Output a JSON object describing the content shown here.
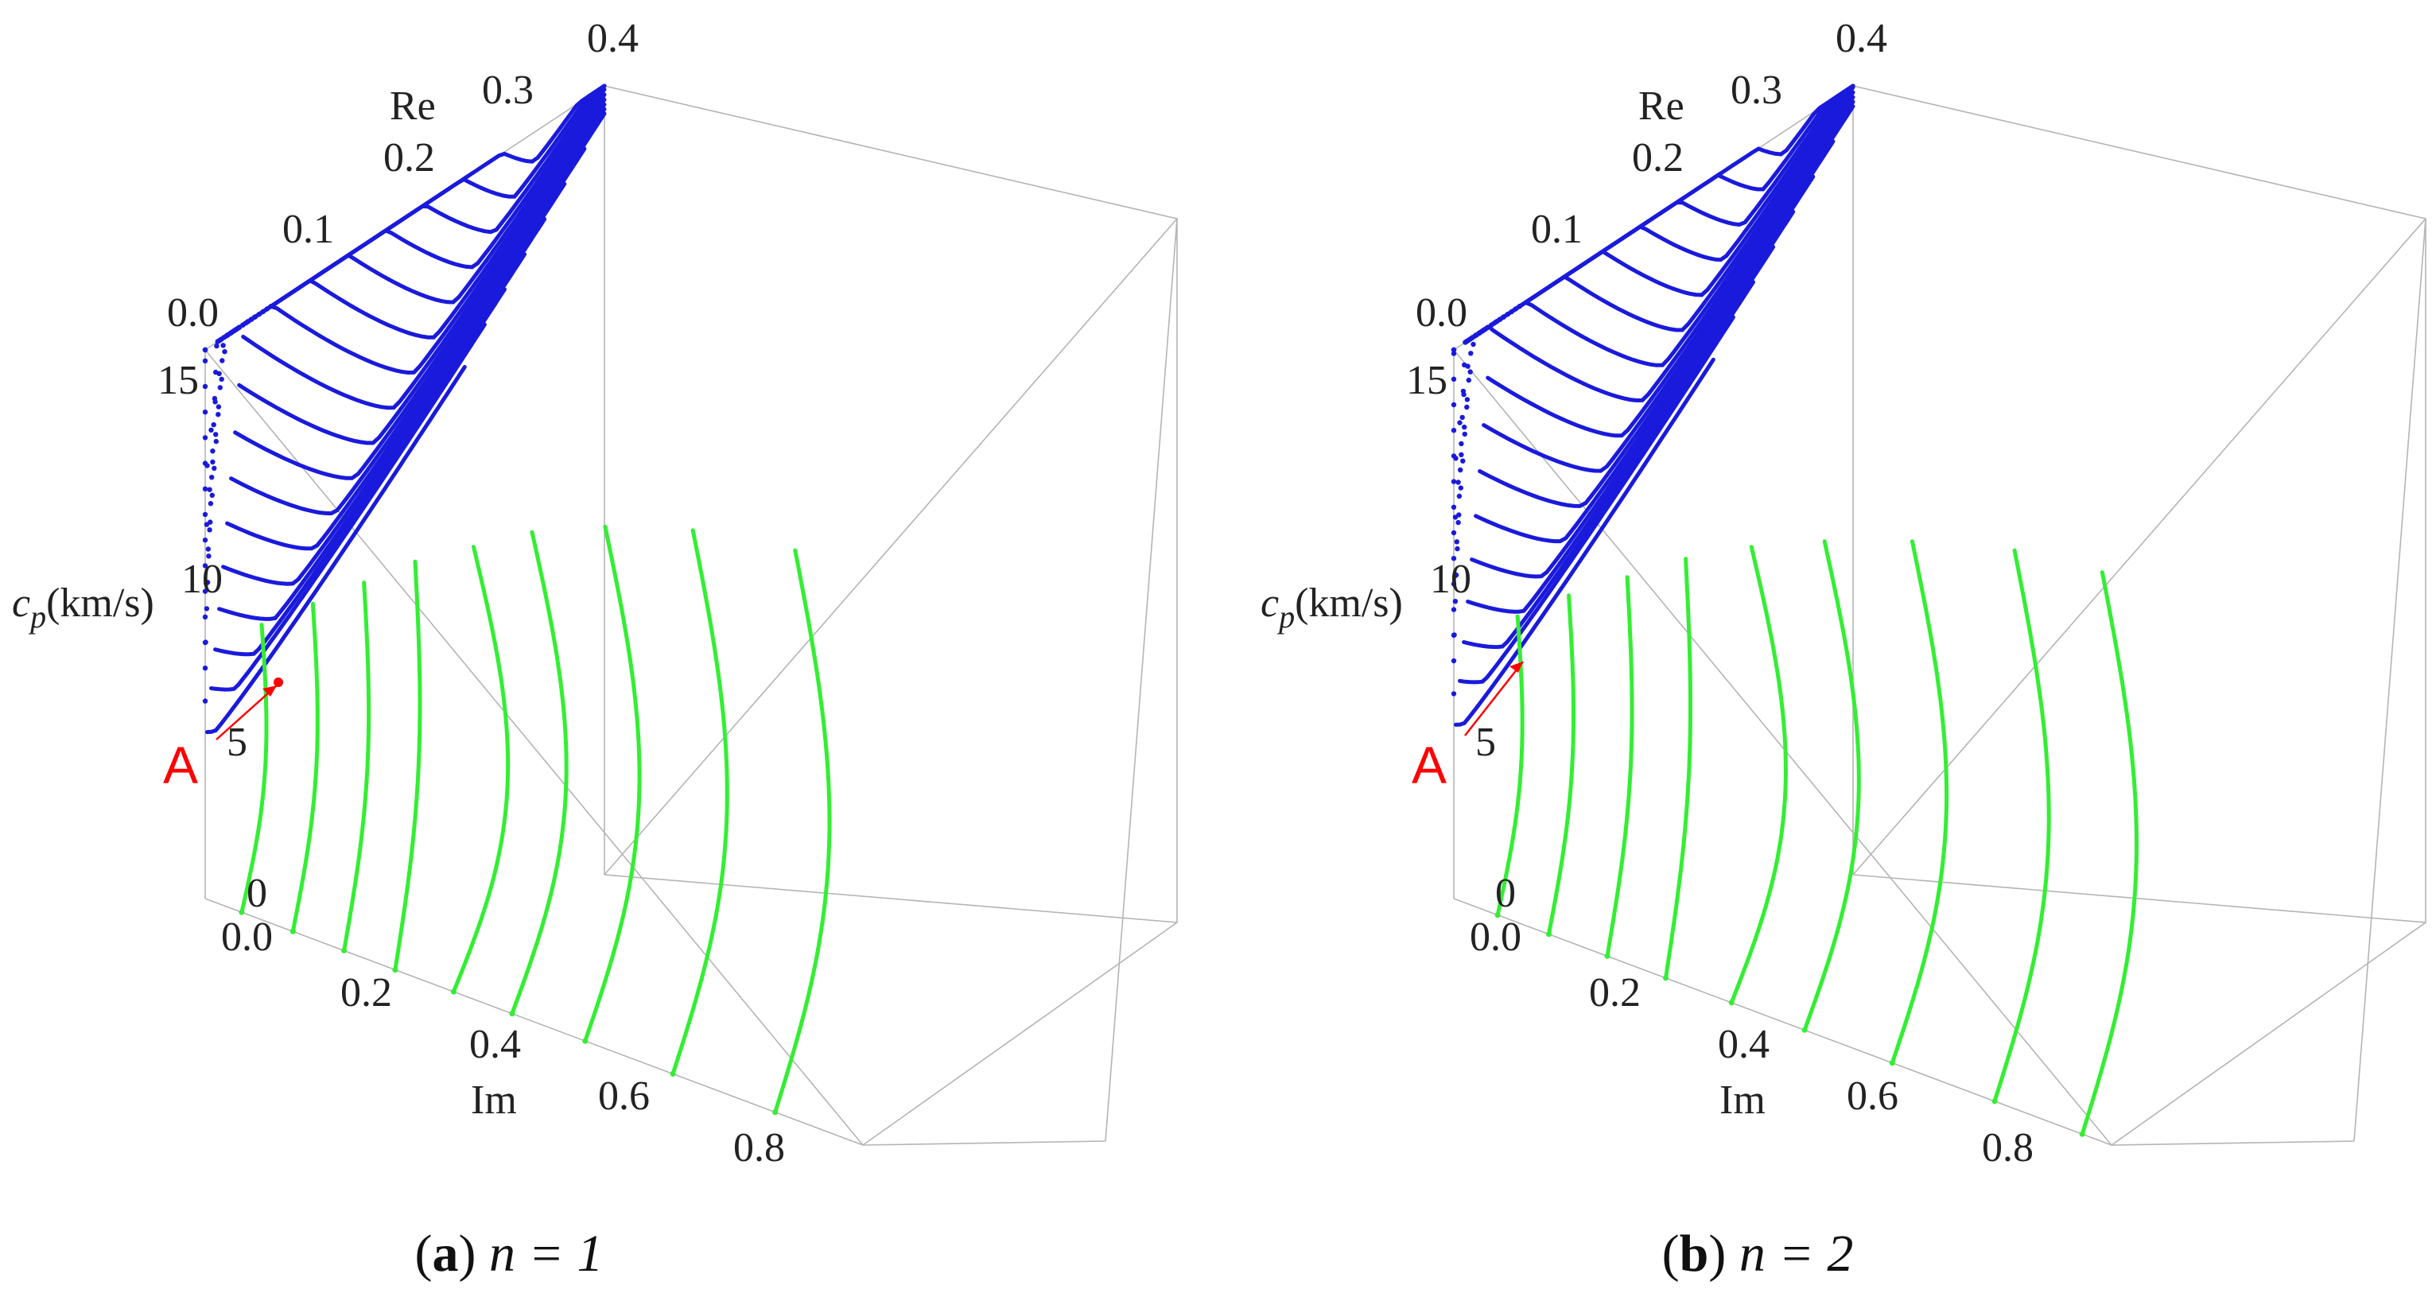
{
  "colors": {
    "real_branch": "#1a1adc",
    "imag_branch": "#33ee33",
    "annotation": "#ff0000",
    "box": "#b4b4b4"
  },
  "chart_data": [
    {
      "type": "scatter",
      "caption": {
        "label": "a",
        "text": "n = 1"
      },
      "n": 1,
      "axes": {
        "im": {
          "label": "Im",
          "ticks": [
            "0.0",
            "0.2",
            "0.4",
            "0.6",
            "0.8"
          ],
          "range": [
            0,
            0.9
          ]
        },
        "re": {
          "label": "Re",
          "ticks": [
            "0.0",
            "0.1",
            "0.2",
            "0.3",
            "0.4"
          ],
          "range": [
            0,
            0.4
          ]
        },
        "cp": {
          "label": "c_p(km/s)",
          "ticks": [
            "0",
            "5",
            "10",
            "15"
          ],
          "range": [
            0,
            15
          ]
        }
      },
      "annotation": {
        "label": "A",
        "re": 0.0,
        "im": 0.0,
        "cp": 6.4
      },
      "series": [
        {
          "branch": "real",
          "curves": [
            {
              "re_min": 0.01,
              "cp_min": 4.4
            },
            {
              "re_min": 0.03,
              "cp_min": 5.2
            },
            {
              "re_min": 0.05,
              "cp_min": 5.8
            },
            {
              "re_min": 0.07,
              "cp_min": 6.4
            },
            {
              "re_min": 0.09,
              "cp_min": 7.0
            },
            {
              "re_min": 0.11,
              "cp_min": 7.6
            },
            {
              "re_min": 0.13,
              "cp_min": 8.2
            },
            {
              "re_min": 0.15,
              "cp_min": 8.8
            },
            {
              "re_min": 0.17,
              "cp_min": 9.4
            },
            {
              "re_min": 0.19,
              "cp_min": 10.0
            },
            {
              "re_min": 0.21,
              "cp_min": 10.6
            },
            {
              "re_min": 0.23,
              "cp_min": 11.2
            },
            {
              "re_min": 0.25,
              "cp_min": 11.8
            },
            {
              "re_min": 0.27,
              "cp_min": 12.4
            },
            {
              "re_min": 0.29,
              "cp_min": 13.0
            },
            {
              "re_min": 0.31,
              "cp_min": 13.6
            },
            {
              "re_min": 0.33,
              "cp_min": 14.2
            }
          ]
        },
        {
          "branch": "imag",
          "curves": [
            {
              "im": 0.05,
              "cp_top": 7.5
            },
            {
              "im": 0.12,
              "cp_top": 8.6
            },
            {
              "im": 0.19,
              "cp_top": 9.7
            },
            {
              "im": 0.26,
              "cp_top": 10.8
            },
            {
              "im": 0.34,
              "cp_top": 11.8
            },
            {
              "im": 0.42,
              "cp_top": 12.8
            },
            {
              "im": 0.52,
              "cp_top": 13.7
            },
            {
              "im": 0.64,
              "cp_top": 14.5
            },
            {
              "im": 0.78,
              "cp_top": 15.0
            }
          ]
        }
      ]
    },
    {
      "type": "scatter",
      "caption": {
        "label": "b",
        "text": "n = 2"
      },
      "n": 2,
      "axes": {
        "im": {
          "label": "Im",
          "ticks": [
            "0.0",
            "0.2",
            "0.4",
            "0.6",
            "0.8"
          ],
          "range": [
            0,
            0.9
          ]
        },
        "re": {
          "label": "Re",
          "ticks": [
            "0.0",
            "0.1",
            "0.2",
            "0.3",
            "0.4"
          ],
          "range": [
            0,
            0.4
          ]
        },
        "cp": {
          "label": "c_p(km/s)",
          "ticks": [
            "0",
            "5",
            "10",
            "15"
          ],
          "range": [
            0,
            15
          ]
        }
      },
      "annotation": {
        "label": "A",
        "re": 0.0,
        "im": 0.0,
        "cp": 7.2
      },
      "series": [
        {
          "branch": "real",
          "curves": [
            {
              "re_min": 0.01,
              "cp_min": 4.6
            },
            {
              "re_min": 0.03,
              "cp_min": 5.4
            },
            {
              "re_min": 0.05,
              "cp_min": 6.0
            },
            {
              "re_min": 0.07,
              "cp_min": 6.6
            },
            {
              "re_min": 0.09,
              "cp_min": 7.2
            },
            {
              "re_min": 0.11,
              "cp_min": 7.8
            },
            {
              "re_min": 0.13,
              "cp_min": 8.4
            },
            {
              "re_min": 0.15,
              "cp_min": 9.0
            },
            {
              "re_min": 0.17,
              "cp_min": 9.6
            },
            {
              "re_min": 0.19,
              "cp_min": 10.2
            },
            {
              "re_min": 0.21,
              "cp_min": 10.8
            },
            {
              "re_min": 0.23,
              "cp_min": 11.4
            },
            {
              "re_min": 0.25,
              "cp_min": 12.0
            },
            {
              "re_min": 0.27,
              "cp_min": 12.6
            },
            {
              "re_min": 0.29,
              "cp_min": 13.2
            },
            {
              "re_min": 0.31,
              "cp_min": 13.8
            },
            {
              "re_min": 0.33,
              "cp_min": 14.4
            }
          ]
        },
        {
          "branch": "imag",
          "curves": [
            {
              "im": 0.06,
              "cp_top": 7.8
            },
            {
              "im": 0.13,
              "cp_top": 8.9
            },
            {
              "im": 0.21,
              "cp_top": 10.0
            },
            {
              "im": 0.29,
              "cp_top": 11.1
            },
            {
              "im": 0.38,
              "cp_top": 12.1
            },
            {
              "im": 0.48,
              "cp_top": 13.0
            },
            {
              "im": 0.6,
              "cp_top": 13.9
            },
            {
              "im": 0.74,
              "cp_top": 14.7
            },
            {
              "im": 0.86,
              "cp_top": 15.0
            }
          ]
        }
      ]
    }
  ]
}
